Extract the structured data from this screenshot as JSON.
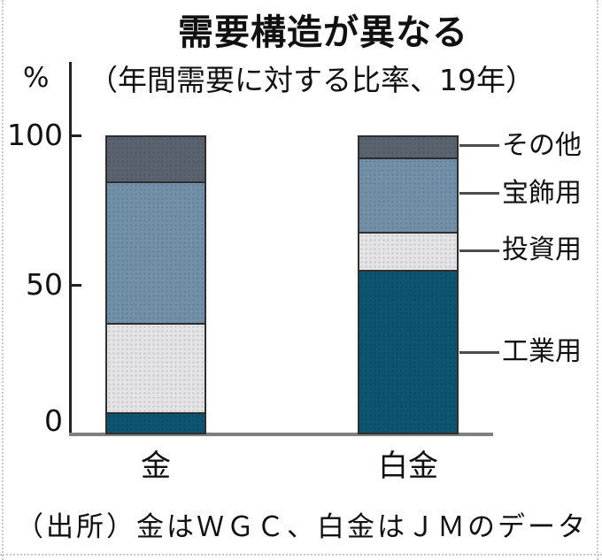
{
  "title": "需要構造が異なる",
  "subtitle": "（年間需要に対する比率、19年）",
  "unit_label": "%",
  "source_note": "（出所）金はＷＧＣ、白金はＪＭのデータ",
  "chart_data": {
    "type": "bar",
    "stacked": true,
    "title": "需要構造が異なる",
    "subtitle": "（年間需要に対する比率、19年）",
    "ylabel": "%",
    "ylim": [
      0,
      100
    ],
    "yticks": [
      0,
      50,
      100
    ],
    "grid": false,
    "legend_position": "right-labels-on-second-bar",
    "categories": [
      "金",
      "白金"
    ],
    "series": [
      {
        "name": "工業用",
        "values": [
          7,
          55
        ],
        "color": "#0d5571"
      },
      {
        "name": "投資用",
        "values": [
          30,
          13
        ],
        "color": "#e4e4e7"
      },
      {
        "name": "宝飾用",
        "values": [
          48,
          25
        ],
        "color": "#7291a8"
      },
      {
        "name": "その他",
        "values": [
          15,
          7
        ],
        "color": "#5a6370"
      }
    ],
    "colors": {
      "outline": "#2e2e2e",
      "axis": "#222222",
      "baseline": "#7f7f7f",
      "leader_line": "#4d4d4d"
    }
  }
}
